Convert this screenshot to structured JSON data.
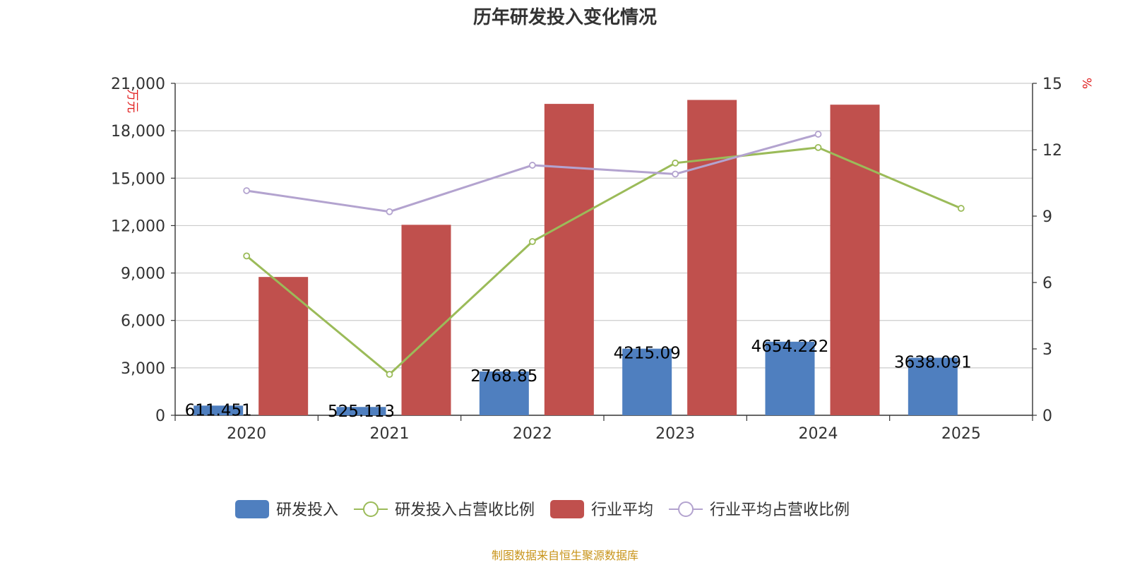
{
  "chart_data": {
    "type": "bar",
    "title": "历年研发投入变化情况",
    "categories": [
      "2020",
      "2021",
      "2022",
      "2023",
      "2024",
      "2025"
    ],
    "left_axis": {
      "unit": "万元",
      "min": 0,
      "max": 21000,
      "ticks": [
        0,
        3000,
        6000,
        9000,
        12000,
        15000,
        18000,
        21000
      ],
      "tick_labels": [
        "0",
        "3,000",
        "6,000",
        "9,000",
        "12,000",
        "15,000",
        "18,000",
        "21,000"
      ]
    },
    "right_axis": {
      "unit": "%",
      "min": 0,
      "max": 15,
      "ticks": [
        0,
        3,
        6,
        9,
        12,
        15
      ],
      "tick_labels": [
        "0",
        "3",
        "6",
        "9",
        "12",
        "15"
      ]
    },
    "grid": true,
    "legend_position": "bottom",
    "series": [
      {
        "name": "研发投入",
        "type": "bar",
        "axis": "left",
        "color": "#4f7fbf",
        "values": [
          611.451,
          525.113,
          2768.85,
          4215.09,
          4654.222,
          3638.091
        ],
        "labels": [
          "611.451",
          "525.113",
          "2768.85",
          "4215.09",
          "4654.222",
          "3638.091"
        ]
      },
      {
        "name": "研发投入占营收比例",
        "type": "line",
        "axis": "right",
        "color": "#9bbb59",
        "values": [
          7.2,
          1.85,
          7.85,
          11.4,
          12.1,
          9.35
        ]
      },
      {
        "name": "行业平均",
        "type": "bar",
        "axis": "left",
        "color": "#c0504d",
        "values": [
          8750,
          12050,
          19700,
          19950,
          19650,
          null
        ]
      },
      {
        "name": "行业平均占营收比例",
        "type": "line",
        "axis": "right",
        "color": "#b3a3cf",
        "values": [
          10.15,
          9.2,
          11.3,
          10.9,
          12.7,
          null
        ]
      }
    ],
    "source": "制图数据来自恒生聚源数据库"
  }
}
